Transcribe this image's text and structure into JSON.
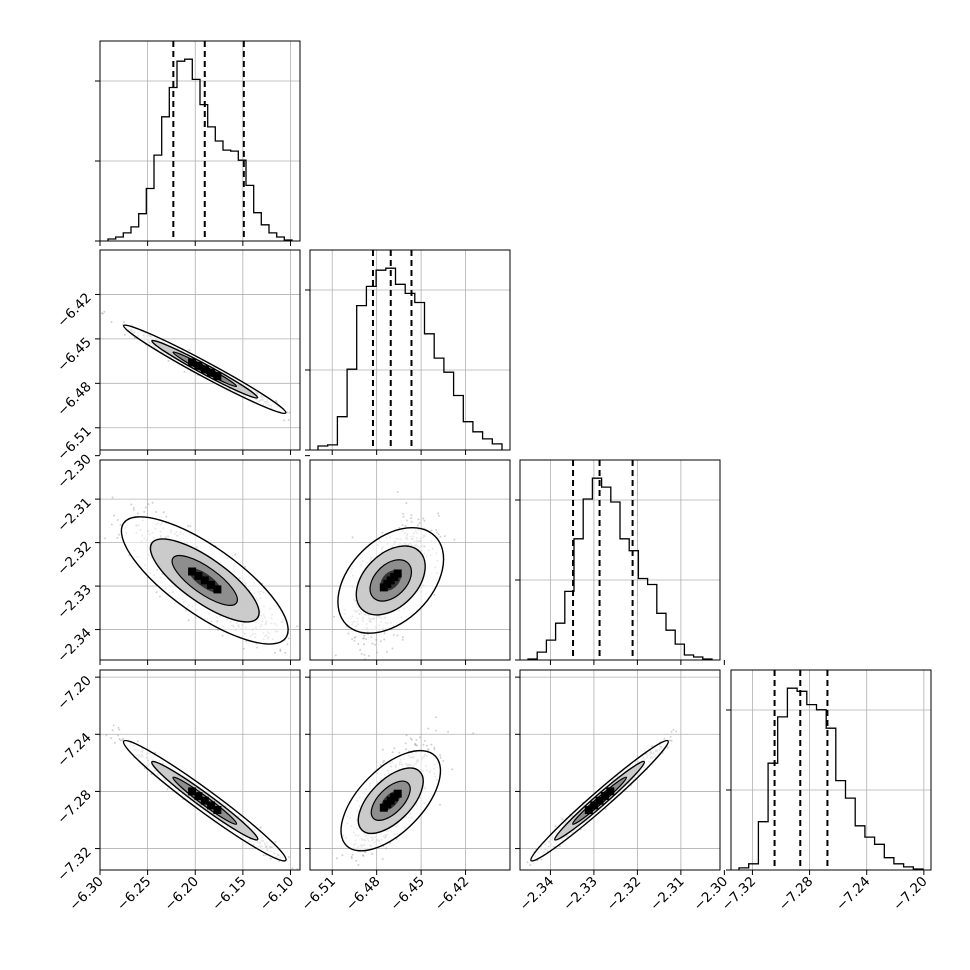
{
  "chart_data": {
    "type": "corner",
    "parameters": [
      {
        "range": [
          -6.3,
          -6.09
        ],
        "ticks": [
          -6.3,
          -6.25,
          -6.2,
          -6.15,
          -6.1
        ],
        "tick_labels": [
          "−6.30",
          "−6.25",
          "−6.20",
          "−6.15",
          "−6.10"
        ],
        "quantiles": [
          -6.223,
          -6.19,
          -6.149
        ],
        "hist": [
          2,
          4,
          8,
          14,
          27,
          52,
          85,
          123,
          152,
          178,
          180,
          160,
          135,
          113,
          99,
          90,
          89,
          80,
          55,
          28,
          16,
          8,
          4,
          1
        ]
      },
      {
        "range": [
          -6.525,
          -6.39
        ],
        "ticks": [
          -6.51,
          -6.48,
          -6.45,
          -6.42
        ],
        "tick_labels": [
          "−6.51",
          "−6.48",
          "−6.45",
          "−6.42"
        ],
        "quantiles": [
          -6.4825,
          -6.4705,
          -6.4565
        ],
        "hist": [
          4,
          5,
          33,
          80,
          143,
          162,
          178,
          180,
          164,
          155,
          146,
          115,
          91,
          77,
          54,
          28,
          18,
          11,
          6
        ]
      },
      {
        "range": [
          -2.347,
          -2.301
        ],
        "ticks": [
          -2.34,
          -2.33,
          -2.32,
          -2.31,
          -2.3
        ],
        "tick_labels": [
          "−2.34",
          "−2.33",
          "−2.32",
          "−2.31",
          "−2.30"
        ],
        "quantiles": [
          -2.3348,
          -2.3287,
          -2.3211
        ],
        "hist": [
          1,
          8,
          20,
          37,
          69,
          122,
          162,
          183,
          174,
          159,
          122,
          110,
          82,
          76,
          47,
          30,
          16,
          5,
          3,
          1
        ]
      },
      {
        "range": [
          -7.335,
          -7.195
        ],
        "ticks": [
          -7.32,
          -7.28,
          -7.24,
          -7.2
        ],
        "tick_labels": [
          "−7.32",
          "−7.28",
          "−7.24",
          "−7.20"
        ],
        "quantiles": [
          -7.3045,
          -7.2865,
          -7.2675
        ],
        "hist": [
          2,
          6,
          47,
          104,
          149,
          177,
          174,
          161,
          156,
          138,
          87,
          70,
          43,
          32,
          25,
          12,
          6,
          3,
          1
        ]
      }
    ],
    "pairs": [
      {
        "x": 0,
        "y": 1,
        "slope": -0.46
      },
      {
        "x": 0,
        "y": 2,
        "slope": -0.155
      },
      {
        "x": 0,
        "y": 3,
        "slope": -0.49
      },
      {
        "x": 1,
        "y": 2,
        "slope": 0.34
      },
      {
        "x": 1,
        "y": 3,
        "slope": 1.05
      },
      {
        "x": 2,
        "y": 3,
        "slope": 3.0
      }
    ],
    "quantile_levels": [
      0.16,
      0.5,
      0.84
    ],
    "grid": true,
    "colors": {
      "line": "#000000",
      "grid": "#b0b0b0",
      "point": "#9a9a9a"
    }
  }
}
